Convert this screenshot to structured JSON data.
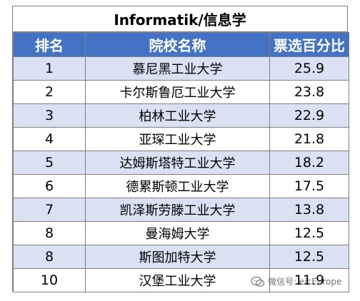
{
  "header": {
    "title": "Informatik/信息学"
  },
  "table": {
    "columns": [
      "排名",
      "院校名称",
      "票选百分比"
    ],
    "rows": [
      {
        "rank": "1",
        "name": "慕尼黑工业大学",
        "percent": "25.9"
      },
      {
        "rank": "2",
        "name": "卡尔斯鲁厄工业大学",
        "percent": "23.8"
      },
      {
        "rank": "3",
        "name": "柏林工业大学",
        "percent": "22.9"
      },
      {
        "rank": "4",
        "name": "亚琛工业大学",
        "percent": "21.8"
      },
      {
        "rank": "5",
        "name": "达姆斯塔特工业大学",
        "percent": "18.2"
      },
      {
        "rank": "6",
        "name": "德累斯顿工业大学",
        "percent": "17.5"
      },
      {
        "rank": "7",
        "name": "凯泽斯劳滕工业大学",
        "percent": "13.8"
      },
      {
        "rank": "8",
        "name": "曼海姆大学",
        "percent": "12.5"
      },
      {
        "rank": "8",
        "name": "斯图加特大学",
        "percent": "12.5"
      },
      {
        "rank": "10",
        "name": "汉堡工业大学",
        "percent": "11.9"
      }
    ]
  },
  "watermark": {
    "text": "微信号: eicEurope",
    "icon": "wechat-icon"
  },
  "colors": {
    "header_bg": "#4472c4",
    "band_bg": "#d9e1f2",
    "row_bg": "#ffffff",
    "border": "#7f7f7f"
  }
}
